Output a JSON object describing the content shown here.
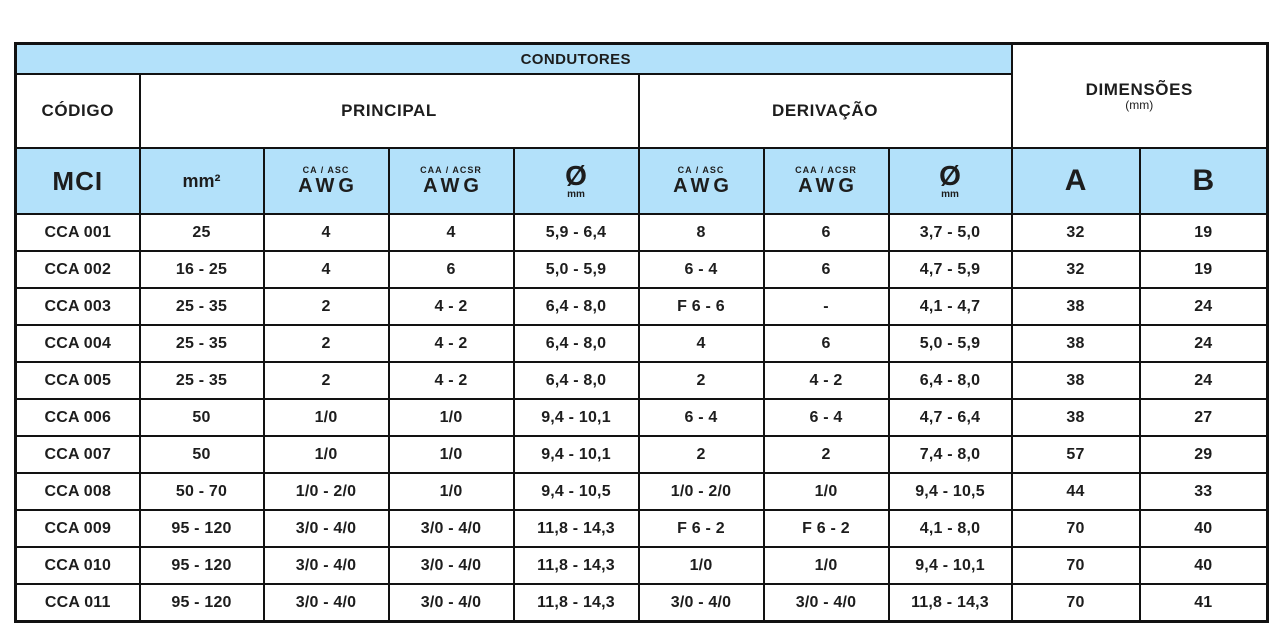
{
  "colors": {
    "header_blue": "#b3e1fa",
    "border_black": "#121212",
    "cell_white": "#ffffff",
    "text": "#1d1d1d"
  },
  "table": {
    "header": {
      "condutores": "CONDUTORES",
      "codigo": "CÓDIGO",
      "principal": "PRINCIPAL",
      "derivacao": "DERIVAÇÃO",
      "dimensoes": "DIMENSÕES",
      "dimensoes_unit": "(mm)",
      "mci": "MCI",
      "mm2": "mm²",
      "ca_asc": "CA / ASC",
      "caa_acsr": "CAA / ACSR",
      "awg": "AWG",
      "diameter_symbol": "Ø",
      "diameter_unit": "mm",
      "col_a": "A",
      "col_b": "B"
    },
    "rows": [
      {
        "code": "CCA 001",
        "mm2": "25",
        "p_ca_awg": "4",
        "p_caa_awg": "4",
        "p_diam": "5,9 - 6,4",
        "d_ca_awg": "8",
        "d_caa_awg": "6",
        "d_diam": "3,7 - 5,0",
        "dim_a": "32",
        "dim_b": "19"
      },
      {
        "code": "CCA 002",
        "mm2": "16 - 25",
        "p_ca_awg": "4",
        "p_caa_awg": "6",
        "p_diam": "5,0 - 5,9",
        "d_ca_awg": "6 - 4",
        "d_caa_awg": "6",
        "d_diam": "4,7 - 5,9",
        "dim_a": "32",
        "dim_b": "19"
      },
      {
        "code": "CCA 003",
        "mm2": "25 - 35",
        "p_ca_awg": "2",
        "p_caa_awg": "4 - 2",
        "p_diam": "6,4 - 8,0",
        "d_ca_awg": "F 6 - 6",
        "d_caa_awg": "-",
        "d_diam": "4,1 - 4,7",
        "dim_a": "38",
        "dim_b": "24"
      },
      {
        "code": "CCA 004",
        "mm2": "25 - 35",
        "p_ca_awg": "2",
        "p_caa_awg": "4 - 2",
        "p_diam": "6,4 - 8,0",
        "d_ca_awg": "4",
        "d_caa_awg": "6",
        "d_diam": "5,0 - 5,9",
        "dim_a": "38",
        "dim_b": "24"
      },
      {
        "code": "CCA 005",
        "mm2": "25 - 35",
        "p_ca_awg": "2",
        "p_caa_awg": "4 - 2",
        "p_diam": "6,4 - 8,0",
        "d_ca_awg": "2",
        "d_caa_awg": "4 - 2",
        "d_diam": "6,4 - 8,0",
        "dim_a": "38",
        "dim_b": "24"
      },
      {
        "code": "CCA 006",
        "mm2": "50",
        "p_ca_awg": "1/0",
        "p_caa_awg": "1/0",
        "p_diam": "9,4 - 10,1",
        "d_ca_awg": "6 - 4",
        "d_caa_awg": "6 - 4",
        "d_diam": "4,7 - 6,4",
        "dim_a": "38",
        "dim_b": "27"
      },
      {
        "code": "CCA 007",
        "mm2": "50",
        "p_ca_awg": "1/0",
        "p_caa_awg": "1/0",
        "p_diam": "9,4 - 10,1",
        "d_ca_awg": "2",
        "d_caa_awg": "2",
        "d_diam": "7,4 - 8,0",
        "dim_a": "57",
        "dim_b": "29"
      },
      {
        "code": "CCA 008",
        "mm2": "50 - 70",
        "p_ca_awg": "1/0 - 2/0",
        "p_caa_awg": "1/0",
        "p_diam": "9,4 - 10,5",
        "d_ca_awg": "1/0 - 2/0",
        "d_caa_awg": "1/0",
        "d_diam": "9,4 - 10,5",
        "dim_a": "44",
        "dim_b": "33"
      },
      {
        "code": "CCA 009",
        "mm2": "95 - 120",
        "p_ca_awg": "3/0 - 4/0",
        "p_caa_awg": "3/0 - 4/0",
        "p_diam": "11,8 - 14,3",
        "d_ca_awg": "F 6 - 2",
        "d_caa_awg": "F 6 - 2",
        "d_diam": "4,1 - 8,0",
        "dim_a": "70",
        "dim_b": "40"
      },
      {
        "code": "CCA 010",
        "mm2": "95 - 120",
        "p_ca_awg": "3/0 - 4/0",
        "p_caa_awg": "3/0 - 4/0",
        "p_diam": "11,8 - 14,3",
        "d_ca_awg": "1/0",
        "d_caa_awg": "1/0",
        "d_diam": "9,4 - 10,1",
        "dim_a": "70",
        "dim_b": "40"
      },
      {
        "code": "CCA 011",
        "mm2": "95 - 120",
        "p_ca_awg": "3/0 - 4/0",
        "p_caa_awg": "3/0 - 4/0",
        "p_diam": "11,8 - 14,3",
        "d_ca_awg": "3/0 - 4/0",
        "d_caa_awg": "3/0 - 4/0",
        "d_diam": "11,8 - 14,3",
        "dim_a": "70",
        "dim_b": "41"
      }
    ]
  }
}
